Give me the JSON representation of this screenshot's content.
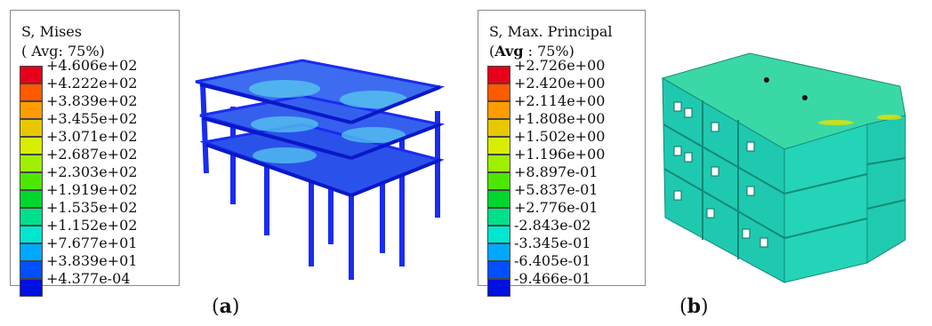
{
  "panel_a": {
    "legend_title": "S, Mises",
    "legend_subtitle": "( Avg: 75%)",
    "labels": [
      "+4.606e+02",
      "+4.222e+02",
      "+3.839e+02",
      "+3.455e+02",
      "+3.071e+02",
      "+2.687e+02",
      "+2.303e+02",
      "+1.919e+02",
      "+1.535e+02",
      "+1.152e+02",
      "+7.677e+01",
      "+3.839e+01",
      "+4.377e-04"
    ],
    "caption_open": "(",
    "caption_letter": "a",
    "caption_close": ")"
  },
  "panel_b": {
    "legend_title": "S, Max. Principal",
    "legend_subtitle_open": "(",
    "legend_subtitle_bold": "Avg",
    "legend_subtitle_rest": ": 75%)",
    "labels": [
      "+2.726e+00",
      "+2.420e+00",
      "+2.114e+00",
      "+1.808e+00",
      "+1.502e+00",
      "+1.196e+00",
      "+8.897e-01",
      "+5.837e-01",
      "+2.776e-01",
      "-2.843e-02",
      "-3.345e-01",
      "-6.405e-01",
      "-9.466e-01"
    ],
    "caption_open": "(",
    "caption_letter": "b",
    "caption_close": ")"
  },
  "colors": {
    "scale": [
      "#e8001a",
      "#ff5a00",
      "#ff9c00",
      "#e8c800",
      "#d8ee00",
      "#9ef000",
      "#4de600",
      "#00d62e",
      "#00e08a",
      "#00e6cf",
      "#00a8ff",
      "#0050ff",
      "#0010e0"
    ],
    "frame_blue": "#1a2cf0",
    "building_green": "#22d8b8"
  }
}
